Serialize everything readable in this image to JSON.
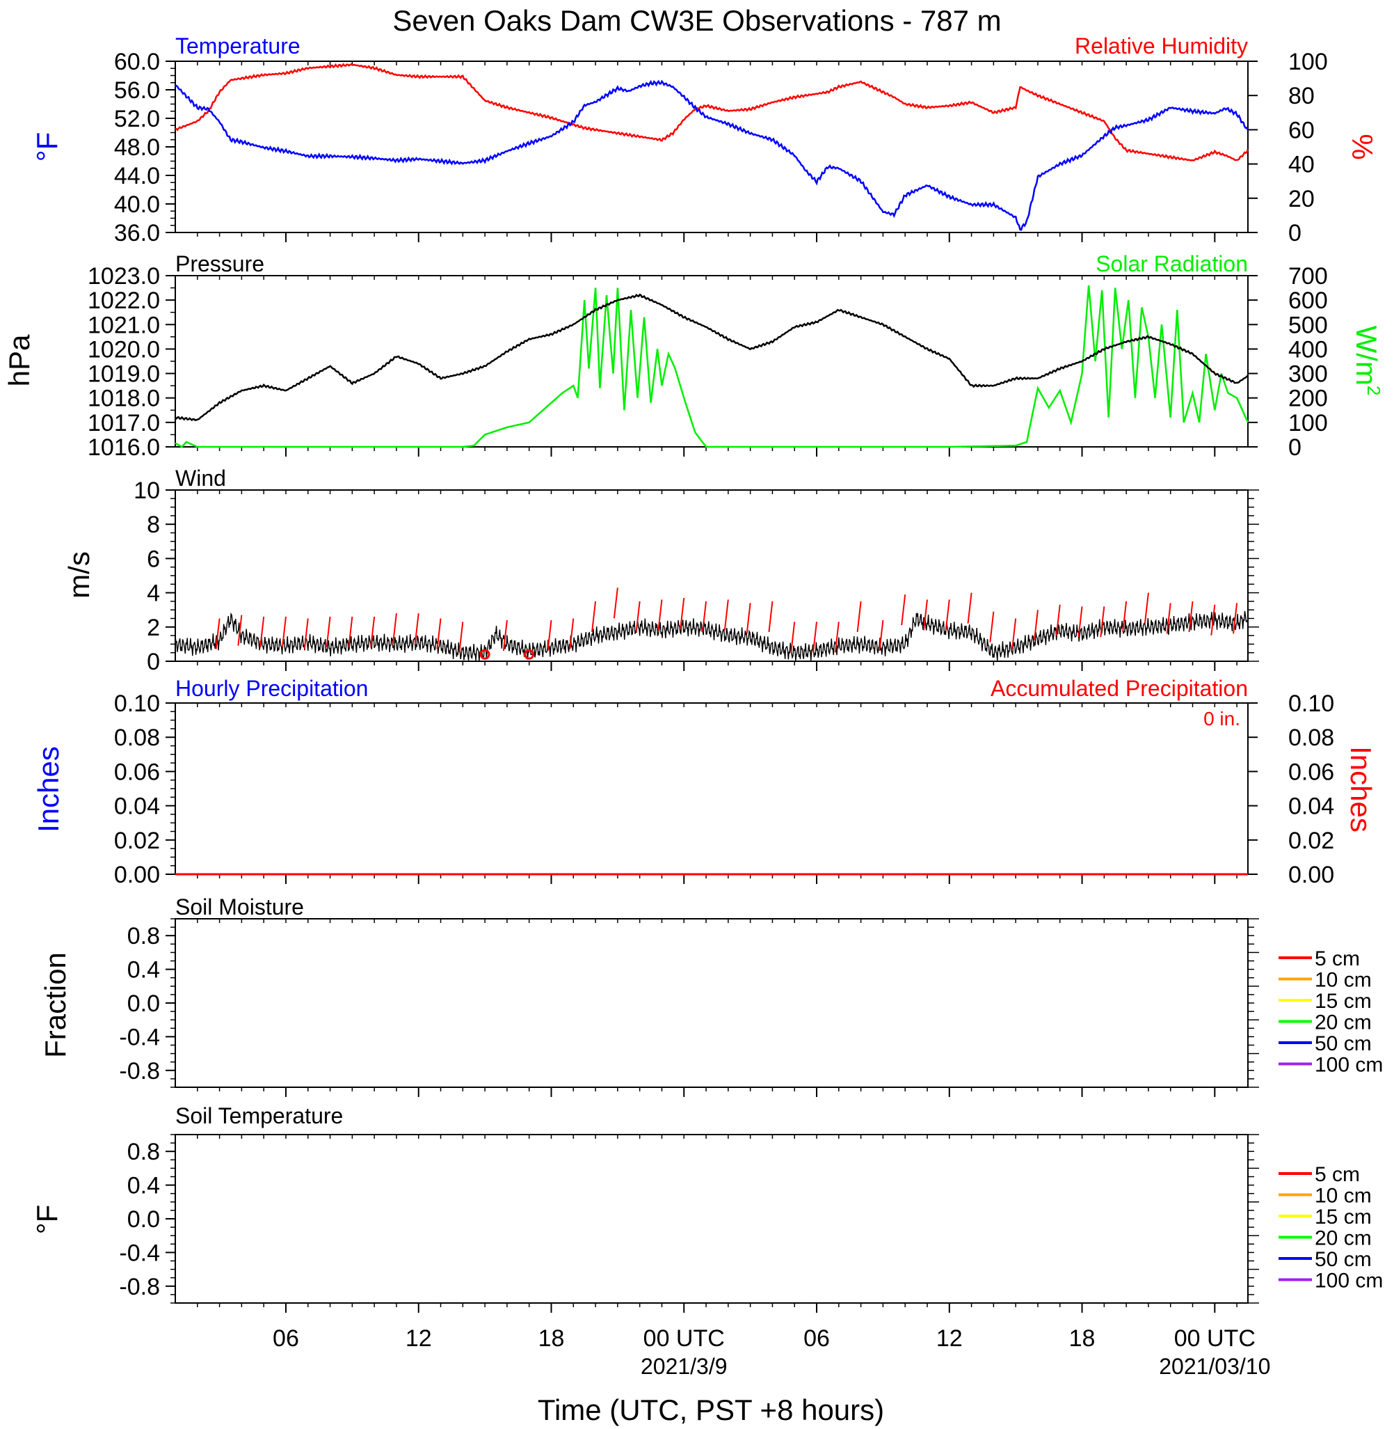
{
  "title": "Seven Oaks Dam CW3E Observations - 787 m",
  "xlabel": "Time (UTC, PST +8 hours)",
  "x_axis": {
    "start_hour": 0,
    "end_hour": 48.5,
    "ticks": [
      {
        "hour": 5,
        "label": "06",
        "date": ""
      },
      {
        "hour": 11,
        "label": "12",
        "date": ""
      },
      {
        "hour": 17,
        "label": "18",
        "date": ""
      },
      {
        "hour": 23,
        "label": "00 UTC",
        "date": "2021/3/9"
      },
      {
        "hour": 29,
        "label": "06",
        "date": ""
      },
      {
        "hour": 35,
        "label": "12",
        "date": ""
      },
      {
        "hour": 41,
        "label": "18",
        "date": ""
      },
      {
        "hour": 47,
        "label": "00 UTC",
        "date": "2021/03/10"
      }
    ]
  },
  "colors": {
    "temperature": "#0000ff",
    "humidity": "#ff0000",
    "pressure": "#000000",
    "solar": "#00ee00",
    "wind": "#000000",
    "wind_barb": "#ff0000",
    "hourly_precip": "#0000ff",
    "accum_precip": "#ff0000"
  },
  "panels": {
    "temp_rh": {
      "left_title": "Temperature",
      "right_title": "Relative Humidity",
      "left_ylabel": "°F",
      "right_ylabel": "%",
      "left_ticks": [
        "60.0",
        "56.0",
        "52.0",
        "48.0",
        "44.0",
        "40.0",
        "36.0"
      ],
      "right_ticks": [
        "100",
        "80",
        "60",
        "40",
        "20",
        "0"
      ]
    },
    "pressure_solar": {
      "left_title": "Pressure",
      "right_title": "Solar Radiation",
      "left_ylabel": "hPa",
      "right_ylabel": "W/m",
      "right_ylabel_sup": "2",
      "left_ticks": [
        "1023.0",
        "1022.0",
        "1021.0",
        "1020.0",
        "1019.0",
        "1018.0",
        "1017.0",
        "1016.0"
      ],
      "right_ticks": [
        "700",
        "600",
        "500",
        "400",
        "300",
        "200",
        "100",
        "0"
      ]
    },
    "wind": {
      "left_title": "Wind",
      "left_ylabel": "m/s",
      "left_ticks": [
        "10",
        "8",
        "6",
        "4",
        "2",
        "0"
      ]
    },
    "precip": {
      "left_title": "Hourly Precipitation",
      "right_title": "Accumulated Precipitation",
      "left_ylabel": "Inches",
      "right_ylabel": "Inches",
      "total_label": "0 in.",
      "left_ticks": [
        "0.10",
        "0.08",
        "0.06",
        "0.04",
        "0.02",
        "0.00"
      ],
      "right_ticks": [
        "0.10",
        "0.08",
        "0.06",
        "0.04",
        "0.02",
        "0.00"
      ]
    },
    "soil_moisture": {
      "left_title": "Soil Moisture",
      "left_ylabel": "Fraction",
      "left_ticks": [
        "0.8",
        "0.4",
        "0.0",
        "-0.4",
        "-0.8"
      ]
    },
    "soil_temp": {
      "left_title": "Soil Temperature",
      "left_ylabel": "°F",
      "left_ticks": [
        "0.8",
        "0.4",
        "0.0",
        "-0.4",
        "-0.8"
      ]
    }
  },
  "soil_legend": [
    {
      "label": "5 cm",
      "color": "#ff0000"
    },
    {
      "label": "10 cm",
      "color": "#ffa500"
    },
    {
      "label": "15 cm",
      "color": "#ffff00"
    },
    {
      "label": "20 cm",
      "color": "#00ff00"
    },
    {
      "label": "50 cm",
      "color": "#0000ff"
    },
    {
      "label": "100 cm",
      "color": "#a020f0"
    }
  ],
  "chart_data": [
    {
      "type": "line",
      "title": "Temperature / Relative Humidity",
      "xlim": [
        0,
        48.5
      ],
      "series": [
        {
          "name": "Temperature",
          "axis": "left",
          "ylim": [
            36,
            60
          ],
          "x": [
            0,
            1,
            1.5,
            2,
            2.5,
            3,
            4,
            5,
            6,
            7,
            8,
            9,
            10,
            11,
            12,
            13,
            14,
            15,
            16,
            17,
            18,
            18.5,
            19,
            20,
            20.5,
            21,
            21.5,
            22,
            22.5,
            23,
            23.5,
            24,
            25,
            26,
            27,
            28,
            28.5,
            29,
            29.5,
            30,
            31,
            32,
            32.5,
            33,
            34,
            35,
            36,
            37,
            38,
            38.2,
            38.5,
            39,
            40,
            41,
            42,
            42.5,
            43,
            44,
            45,
            46,
            47,
            47.5,
            48,
            48.5
          ],
          "y": [
            56.7,
            53.5,
            53.3,
            51.5,
            49.0,
            48.7,
            47.9,
            47.4,
            46.7,
            46.7,
            46.6,
            46.4,
            46.1,
            46.3,
            46.0,
            45.7,
            46.1,
            47.4,
            48.5,
            49.5,
            51.5,
            53.8,
            54.3,
            56.2,
            55.8,
            56.5,
            56.9,
            57.0,
            56.4,
            55.0,
            53.5,
            52.2,
            51.2,
            49.9,
            49.0,
            46.8,
            44.7,
            43.1,
            45.2,
            45.0,
            43.2,
            38.9,
            38.5,
            41.2,
            42.6,
            41.0,
            39.9,
            39.9,
            38.1,
            36.4,
            37.5,
            43.8,
            45.6,
            46.8,
            49.5,
            50.7,
            51.0,
            51.8,
            53.5,
            53.0,
            52.7,
            53.4,
            52.6,
            50.3
          ]
        },
        {
          "name": "Relative Humidity",
          "axis": "right",
          "ylim": [
            0,
            100
          ],
          "x": [
            0,
            1,
            1.5,
            2,
            2.5,
            3,
            4,
            5,
            6,
            7,
            8,
            9,
            10,
            11,
            12,
            13,
            14,
            15,
            16,
            17,
            18,
            18.5,
            19,
            20,
            20.5,
            21,
            21.5,
            22,
            22.5,
            23,
            23.5,
            24,
            25,
            26,
            27,
            28,
            28.5,
            29,
            29.5,
            30,
            31,
            32,
            32.5,
            33,
            34,
            35,
            36,
            37,
            38,
            38.2,
            38.5,
            39,
            40,
            41,
            42,
            42.5,
            43,
            44,
            45,
            46,
            47,
            47.5,
            48,
            48.5
          ],
          "y": [
            60,
            65,
            71,
            82,
            89,
            90,
            92,
            93,
            96,
            97,
            98,
            96,
            92,
            91,
            91,
            91,
            77,
            73,
            70,
            67,
            63,
            61,
            60,
            58,
            57,
            56,
            55,
            54,
            58,
            66,
            72,
            74,
            71,
            72,
            76,
            79,
            80,
            81,
            82,
            85,
            88,
            82,
            79,
            75,
            73,
            74,
            76,
            70,
            73,
            85,
            83,
            80,
            75,
            70,
            65,
            55,
            48,
            46,
            44,
            42,
            47,
            45,
            42,
            48
          ]
        }
      ]
    },
    {
      "type": "line",
      "title": "Pressure / Solar Radiation",
      "xlim": [
        0,
        48.5
      ],
      "series": [
        {
          "name": "Pressure",
          "axis": "left",
          "ylim": [
            1016,
            1023
          ],
          "x": [
            0,
            1,
            2,
            3,
            4,
            5,
            6,
            7,
            8,
            9,
            10,
            11,
            12,
            13,
            14,
            15,
            16,
            17,
            18,
            19,
            20,
            21,
            22,
            23,
            24,
            25,
            26,
            27,
            28,
            29,
            30,
            31,
            32,
            33,
            34,
            35,
            36,
            37,
            38,
            39,
            40,
            41,
            42,
            43,
            44,
            45,
            46,
            47,
            48,
            48.5
          ],
          "y": [
            1017.2,
            1017.1,
            1017.8,
            1018.3,
            1018.5,
            1018.3,
            1018.8,
            1019.3,
            1018.6,
            1019.0,
            1019.7,
            1019.4,
            1018.8,
            1019.0,
            1019.3,
            1019.9,
            1020.4,
            1020.6,
            1021.0,
            1021.6,
            1022.0,
            1022.2,
            1021.8,
            1021.3,
            1020.9,
            1020.4,
            1020.0,
            1020.3,
            1020.9,
            1021.1,
            1021.6,
            1021.3,
            1021.0,
            1020.5,
            1020.0,
            1019.6,
            1018.5,
            1018.5,
            1018.8,
            1018.8,
            1019.2,
            1019.5,
            1020.0,
            1020.3,
            1020.5,
            1020.2,
            1019.8,
            1019.0,
            1018.6,
            1018.9
          ]
        },
        {
          "name": "Solar Radiation",
          "axis": "right",
          "ylim": [
            0,
            700
          ],
          "x": [
            0,
            0.3,
            0.5,
            1,
            5,
            10,
            13,
            13.5,
            14,
            15,
            16,
            17,
            17.5,
            18,
            18.2,
            18.5,
            18.7,
            19,
            19.2,
            19.5,
            19.8,
            20,
            20.3,
            20.6,
            20.9,
            21.2,
            21.5,
            21.8,
            22,
            22.3,
            22.6,
            23,
            23.5,
            24,
            25,
            30,
            35,
            38,
            38.5,
            39,
            39.5,
            40,
            40.5,
            41,
            41.3,
            41.6,
            41.9,
            42.2,
            42.5,
            42.8,
            43.1,
            43.4,
            43.7,
            44,
            44.3,
            44.6,
            45,
            45.3,
            45.6,
            46,
            46.3,
            46.6,
            47,
            47.3,
            47.6,
            48,
            48.5
          ],
          "y": [
            15,
            0,
            20,
            0,
            0,
            0,
            0,
            5,
            50,
            80,
            100,
            180,
            220,
            250,
            200,
            600,
            320,
            650,
            240,
            620,
            300,
            650,
            150,
            560,
            200,
            530,
            180,
            400,
            250,
            380,
            320,
            200,
            60,
            0,
            0,
            0,
            0,
            5,
            20,
            240,
            160,
            230,
            100,
            300,
            660,
            350,
            640,
            120,
            650,
            400,
            600,
            200,
            570,
            450,
            200,
            500,
            120,
            560,
            100,
            220,
            100,
            380,
            150,
            300,
            220,
            200,
            100
          ]
        }
      ]
    },
    {
      "type": "line",
      "title": "Wind",
      "xlim": [
        0,
        48.5
      ],
      "ylim": [
        0,
        10
      ],
      "series": [
        {
          "name": "Wind speed",
          "x": [
            0,
            1,
            2,
            2.5,
            3,
            4,
            5,
            6,
            7,
            8,
            9,
            10,
            11,
            12,
            13,
            14,
            14.5,
            15,
            16,
            17,
            18,
            19,
            20,
            21,
            22,
            23,
            24,
            25,
            26,
            27,
            28,
            29,
            30,
            31,
            32,
            33,
            33.5,
            34,
            35,
            36,
            37,
            38,
            39,
            40,
            41,
            42,
            43,
            44,
            45,
            46,
            47,
            48,
            48.5
          ],
          "y": [
            1.0,
            0.8,
            1.2,
            2.5,
            1.5,
            1.0,
            0.9,
            1.1,
            0.8,
            1.0,
            1.1,
            1.0,
            1.1,
            0.9,
            0.5,
            0.5,
            1.6,
            1.0,
            0.6,
            0.8,
            1.0,
            1.5,
            1.7,
            2.0,
            1.8,
            2.0,
            1.9,
            1.5,
            1.4,
            0.8,
            0.5,
            0.6,
            0.9,
            1.0,
            0.8,
            1.0,
            2.5,
            2.2,
            1.8,
            1.7,
            0.5,
            0.8,
            1.3,
            1.8,
            1.6,
            2.0,
            1.9,
            2.0,
            2.1,
            2.3,
            2.4,
            2.2,
            2.6
          ]
        },
        {
          "name": "Wind barbs",
          "x": [
            2,
            3,
            4,
            5,
            6,
            7,
            8,
            9,
            10,
            11,
            12,
            13,
            14,
            15,
            16,
            17,
            18,
            19,
            20,
            21,
            22,
            23,
            24,
            25,
            26,
            27,
            28,
            29,
            30,
            31,
            32,
            33,
            34,
            35,
            36,
            37,
            38,
            39,
            40,
            41,
            42,
            43,
            44,
            45,
            46,
            47,
            48
          ],
          "y": [
            2.5,
            2.7,
            2.6,
            2.6,
            2.5,
            2.6,
            2.6,
            2.6,
            2.8,
            2.8,
            2.5,
            2.3,
            0.4,
            2.4,
            0.4,
            2.4,
            2.5,
            3.5,
            4.3,
            3.5,
            3.6,
            3.7,
            3.5,
            3.6,
            3.4,
            3.5,
            2.3,
            2.3,
            2.3,
            3.5,
            2.4,
            3.9,
            3.6,
            3.6,
            4.0,
            2.9,
            2.5,
            3.0,
            3.3,
            3.2,
            3.2,
            3.5,
            4.0,
            3.4,
            3.5,
            3.3,
            3.4
          ]
        }
      ]
    },
    {
      "type": "line",
      "title": "Precipitation",
      "xlim": [
        0,
        48.5
      ],
      "ylim": [
        0,
        0.1
      ],
      "series": [
        {
          "name": "Hourly Precipitation",
          "x": [
            0,
            48.5
          ],
          "y": [
            0,
            0
          ]
        },
        {
          "name": "Accumulated Precipitation",
          "x": [
            0,
            48.5
          ],
          "y": [
            0,
            0
          ]
        }
      ]
    },
    {
      "type": "line",
      "title": "Soil Moisture",
      "ylim": [
        -1,
        1
      ],
      "series": []
    },
    {
      "type": "line",
      "title": "Soil Temperature",
      "ylim": [
        -1,
        1
      ],
      "series": []
    }
  ]
}
